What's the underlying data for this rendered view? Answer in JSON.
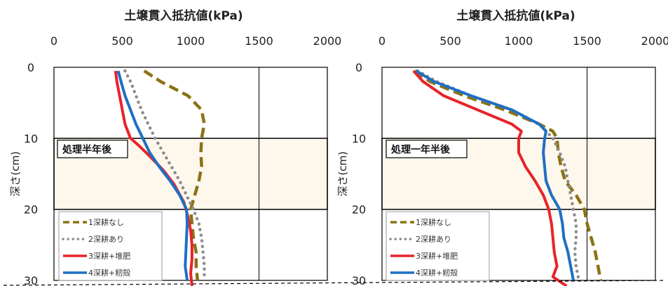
{
  "chart_data": [
    {
      "type": "line",
      "title": "土壌貫入抵抗値(kPa)",
      "xlabel": "土壌貫入抵抗値(kPa)",
      "ylabel": "深さ(cm)",
      "xlim": [
        0,
        2000
      ],
      "ylim": [
        30,
        0
      ],
      "x_ticks": [
        "0",
        "500",
        "1000",
        "1500",
        "2000"
      ],
      "y_ticks": [
        "0",
        "10",
        "20",
        "30"
      ],
      "annotation": "処理半年後",
      "shaded_band_depth": [
        10,
        20
      ],
      "legend_position": "bottom-left",
      "series": [
        {
          "name": "1深耕なし",
          "color": "#8B7314",
          "dash": "dashed",
          "points": [
            [
              660,
              0.5
            ],
            [
              780,
              2
            ],
            [
              980,
              4
            ],
            [
              1080,
              6
            ],
            [
              1100,
              8
            ],
            [
              1080,
              10
            ],
            [
              1075,
              12
            ],
            [
              1080,
              14
            ],
            [
              1060,
              16
            ],
            [
              1030,
              18
            ],
            [
              1000,
              20
            ],
            [
              1010,
              22
            ],
            [
              1020,
              24
            ],
            [
              1040,
              26
            ],
            [
              1040,
              28
            ],
            [
              1050,
              30
            ]
          ]
        },
        {
          "name": "2深耕あり",
          "color": "#8c8c8c",
          "dash": "dotted",
          "points": [
            [
              520,
              0.5
            ],
            [
              560,
              2
            ],
            [
              600,
              4
            ],
            [
              640,
              6
            ],
            [
              690,
              8
            ],
            [
              740,
              10
            ],
            [
              800,
              12
            ],
            [
              860,
              14
            ],
            [
              920,
              16
            ],
            [
              970,
              18
            ],
            [
              1020,
              20
            ],
            [
              1060,
              22
            ],
            [
              1080,
              24
            ],
            [
              1090,
              26
            ],
            [
              1100,
              28
            ],
            [
              1100,
              30
            ]
          ]
        },
        {
          "name": "3深耕+堆肥",
          "color": "#e8232a",
          "dash": "solid",
          "points": [
            [
              450,
              0.5
            ],
            [
              460,
              2
            ],
            [
              480,
              4
            ],
            [
              500,
              6
            ],
            [
              520,
              8
            ],
            [
              560,
              10
            ],
            [
              620,
              11
            ],
            [
              700,
              12.5
            ],
            [
              800,
              14.5
            ],
            [
              880,
              16.5
            ],
            [
              950,
              19
            ],
            [
              980,
              21
            ],
            [
              1000,
              23
            ],
            [
              1010,
              25
            ],
            [
              1010,
              27
            ],
            [
              1000,
              29
            ],
            [
              1010,
              31
            ]
          ]
        },
        {
          "name": "4深耕+籾殻",
          "color": "#1f6fc5",
          "dash": "solid",
          "points": [
            [
              470,
              0.5
            ],
            [
              490,
              2
            ],
            [
              520,
              4
            ],
            [
              560,
              6
            ],
            [
              600,
              8
            ],
            [
              650,
              10
            ],
            [
              700,
              12
            ],
            [
              770,
              14
            ],
            [
              850,
              16
            ],
            [
              920,
              18
            ],
            [
              970,
              20
            ],
            [
              975,
              22
            ],
            [
              970,
              24
            ],
            [
              965,
              26
            ],
            [
              960,
              28
            ],
            [
              975,
              30
            ]
          ]
        }
      ]
    },
    {
      "type": "line",
      "title": "土壌貫入抵抗値(kPa)",
      "xlabel": "土壌貫入抵抗値(kPa)",
      "ylabel": "深さ(cm)",
      "xlim": [
        0,
        2000
      ],
      "ylim": [
        30,
        0
      ],
      "x_ticks": [
        "0",
        "500",
        "1000",
        "1500",
        "2000"
      ],
      "y_ticks": [
        "0",
        "10",
        "20",
        "30"
      ],
      "annotation": "処理一年半後",
      "shaded_band_depth": [
        10,
        20
      ],
      "legend_position": "bottom-left",
      "series": [
        {
          "name": "1深耕なし",
          "color": "#8B7314",
          "dash": "dashed",
          "points": [
            [
              240,
              0.5
            ],
            [
              350,
              2
            ],
            [
              600,
              4
            ],
            [
              900,
              6
            ],
            [
              1150,
              8
            ],
            [
              1250,
              9
            ],
            [
              1280,
              10
            ],
            [
              1290,
              12
            ],
            [
              1310,
              14
            ],
            [
              1340,
              16
            ],
            [
              1420,
              18
            ],
            [
              1480,
              20
            ],
            [
              1500,
              22
            ],
            [
              1530,
              24
            ],
            [
              1560,
              26
            ],
            [
              1580,
              28
            ],
            [
              1600,
              30
            ]
          ]
        },
        {
          "name": "2深耕あり",
          "color": "#8c8c8c",
          "dash": "dotted",
          "points": [
            [
              260,
              0.5
            ],
            [
              400,
              2
            ],
            [
              650,
              4
            ],
            [
              950,
              6
            ],
            [
              1150,
              8
            ],
            [
              1250,
              10
            ],
            [
              1300,
              12
            ],
            [
              1340,
              14
            ],
            [
              1360,
              16
            ],
            [
              1380,
              18
            ],
            [
              1400,
              20
            ],
            [
              1420,
              22
            ],
            [
              1420,
              24
            ],
            [
              1410,
              26
            ],
            [
              1420,
              28
            ],
            [
              1440,
              30
            ]
          ]
        },
        {
          "name": "3深耕+堆肥",
          "color": "#e8232a",
          "dash": "solid",
          "points": [
            [
              230,
              0.5
            ],
            [
              300,
              2
            ],
            [
              450,
              4
            ],
            [
              700,
              6
            ],
            [
              950,
              8
            ],
            [
              1020,
              9
            ],
            [
              1000,
              10
            ],
            [
              1000,
              12
            ],
            [
              1050,
              14
            ],
            [
              1120,
              16
            ],
            [
              1180,
              18
            ],
            [
              1220,
              20
            ],
            [
              1240,
              22
            ],
            [
              1250,
              24
            ],
            [
              1260,
              26
            ],
            [
              1280,
              28
            ],
            [
              1250,
              29.5
            ],
            [
              1350,
              31
            ]
          ]
        },
        {
          "name": "4深耕+籾殻",
          "color": "#1f6fc5",
          "dash": "solid",
          "points": [
            [
              250,
              0.5
            ],
            [
              380,
              2
            ],
            [
              650,
              4
            ],
            [
              950,
              6
            ],
            [
              1150,
              8
            ],
            [
              1200,
              9
            ],
            [
              1190,
              10
            ],
            [
              1180,
              12
            ],
            [
              1190,
              14
            ],
            [
              1200,
              16
            ],
            [
              1240,
              18
            ],
            [
              1300,
              20
            ],
            [
              1320,
              22
            ],
            [
              1330,
              24
            ],
            [
              1360,
              26
            ],
            [
              1380,
              28
            ],
            [
              1400,
              30
            ]
          ]
        }
      ]
    }
  ],
  "legend": {
    "items": [
      "1深耕なし",
      "2深耕あり",
      "3深耕+堆肥",
      "4深耕+籾殻"
    ]
  },
  "colors": {
    "band_fill": "#fdf7ec",
    "frame": "#000000"
  }
}
